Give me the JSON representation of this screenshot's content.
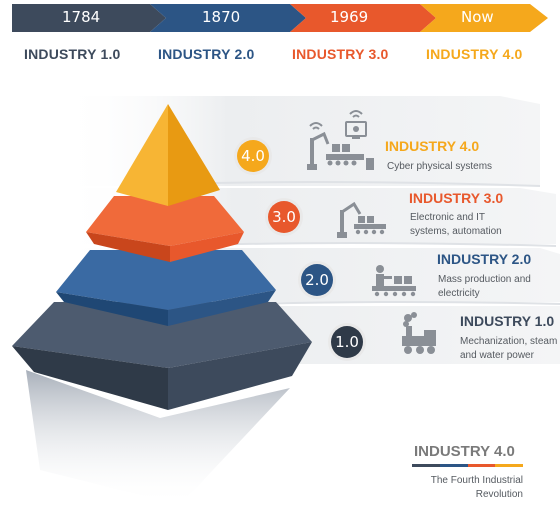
{
  "timeline": {
    "years": [
      "1784",
      "1870",
      "1969",
      "Now"
    ],
    "colors": [
      "#3d4a5c",
      "#2c5585",
      "#e8582c",
      "#f5a81c"
    ]
  },
  "headings": [
    {
      "label": "INDUSTRY 1.0",
      "color": "#3d4a5c"
    },
    {
      "label": "INDUSTRY 2.0",
      "color": "#2c5585"
    },
    {
      "label": "INDUSTRY 3.0",
      "color": "#e8582c"
    },
    {
      "label": "INDUSTRY 4.0",
      "color": "#f5a81c"
    }
  ],
  "levels": [
    {
      "badge": "4.0",
      "title": "INDUSTRY 4.0",
      "desc": [
        "Cyber physical systems"
      ],
      "color": "#f5a81c",
      "icon": "cyber-robot-icon"
    },
    {
      "badge": "3.0",
      "title": "INDUSTRY 3.0",
      "desc": [
        "Electronic and IT",
        "systems, automation"
      ],
      "color": "#e8582c",
      "icon": "robot-arm-icon"
    },
    {
      "badge": "2.0",
      "title": "INDUSTRY 2.0",
      "desc": [
        "Mass production and",
        "electricity"
      ],
      "color": "#2c5585",
      "icon": "assembly-line-icon"
    },
    {
      "badge": "1.0",
      "title": "INDUSTRY 1.0",
      "desc": [
        "Mechanization, steam",
        "and water power"
      ],
      "color": "#3d4a5c",
      "icon": "steam-engine-icon"
    }
  ],
  "footer": {
    "title": "INDUSTRY 4.0",
    "subtitle": [
      "The Fourth Industrial",
      "Revolution"
    ]
  }
}
